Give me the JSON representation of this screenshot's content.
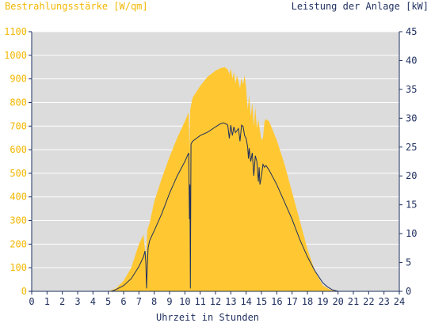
{
  "colors": {
    "irradiance": "#FFC832",
    "power": "#1F2F5F",
    "plot_bg": "#DCDCDC",
    "left_axis_text": "#F2B700",
    "right_axis_text": "#1F2F5F",
    "axis_line": "#1F2F5F",
    "grid": "#FFFFFF"
  },
  "chart_data": {
    "type": "area",
    "title_left": "Bestrahlungsstärke [W/qm]",
    "title_right": "Leistung der Anlage [kW]",
    "xlabel": "Uhrzeit in Stunden",
    "xlim": [
      0,
      24
    ],
    "ylim_left": [
      0,
      1100
    ],
    "ylim_right": [
      0,
      45
    ],
    "x_ticks": [
      "0",
      "1",
      "2",
      "3",
      "4",
      "5",
      "6",
      "7",
      "8",
      "9",
      "10",
      "11",
      "12",
      "13",
      "14",
      "15",
      "16",
      "17",
      "18",
      "19",
      "20",
      "21",
      "22",
      "23",
      "24"
    ],
    "y_left_ticks": [
      "0",
      "100",
      "200",
      "300",
      "400",
      "500",
      "600",
      "700",
      "800",
      "900",
      "1000",
      "1100"
    ],
    "y_right_ticks": [
      "0",
      "5",
      "10",
      "15",
      "20",
      "25",
      "30",
      "35",
      "40",
      "45"
    ],
    "grid": "horizontal",
    "series": [
      {
        "name": "Bestrahlungsstärke",
        "axis": "left",
        "style": "area",
        "x": [
          0,
          5.0,
          5.5,
          6.0,
          6.5,
          7.0,
          7.3,
          7.45,
          7.55,
          7.7,
          8.0,
          8.5,
          9.0,
          9.5,
          10.0,
          10.25,
          10.3,
          10.35,
          10.5,
          11.0,
          11.5,
          12.0,
          12.3,
          12.6,
          12.8,
          12.9,
          13.0,
          13.1,
          13.2,
          13.3,
          13.4,
          13.5,
          13.6,
          13.7,
          13.8,
          13.9,
          14.0,
          14.1,
          14.2,
          14.3,
          14.4,
          14.5,
          14.6,
          14.7,
          14.8,
          14.9,
          15.0,
          15.1,
          15.2,
          15.3,
          15.5,
          16.0,
          16.5,
          17.0,
          17.5,
          18.0,
          18.5,
          19.0,
          19.5,
          20.0,
          20.5,
          24
        ],
        "y": [
          0,
          0,
          12,
          45,
          100,
          200,
          240,
          140,
          260,
          290,
          380,
          480,
          570,
          650,
          720,
          760,
          600,
          770,
          820,
          870,
          910,
          935,
          945,
          950,
          940,
          920,
          945,
          900,
          930,
          880,
          915,
          890,
          860,
          905,
          875,
          915,
          860,
          770,
          830,
          740,
          800,
          700,
          780,
          690,
          730,
          680,
          640,
          650,
          720,
          730,
          720,
          640,
          540,
          420,
          300,
          180,
          85,
          25,
          6,
          0,
          0,
          0
        ]
      },
      {
        "name": "Leistung der Anlage",
        "axis": "right",
        "style": "line",
        "x": [
          0,
          5.2,
          5.5,
          6.0,
          6.5,
          7.0,
          7.3,
          7.4,
          7.45,
          7.5,
          7.55,
          7.6,
          7.7,
          8.0,
          8.5,
          9.0,
          9.5,
          10.0,
          10.25,
          10.3,
          10.33,
          10.36,
          10.4,
          10.5,
          11.0,
          11.5,
          12.0,
          12.3,
          12.5,
          12.7,
          12.8,
          12.9,
          13.0,
          13.1,
          13.2,
          13.3,
          13.5,
          13.6,
          13.7,
          13.8,
          13.9,
          14.0,
          14.1,
          14.15,
          14.2,
          14.3,
          14.4,
          14.5,
          14.6,
          14.7,
          14.8,
          14.85,
          14.9,
          15.0,
          15.1,
          15.2,
          15.3,
          15.5,
          16.0,
          16.5,
          17.0,
          17.5,
          18.0,
          18.5,
          19.0,
          19.3,
          19.6,
          20.0,
          24
        ],
        "y": [
          0,
          0,
          0.3,
          1.0,
          2.2,
          4.3,
          6.0,
          7.0,
          5.0,
          0.5,
          4.5,
          7.5,
          8.8,
          10.5,
          13.5,
          17.0,
          20.0,
          22.5,
          24.0,
          12.5,
          18.5,
          0.5,
          25.5,
          26.0,
          27.0,
          27.6,
          28.5,
          29.0,
          29.2,
          29.0,
          28.8,
          26.5,
          28.8,
          27.0,
          28.5,
          27.5,
          28.2,
          26.0,
          28.8,
          28.6,
          27.0,
          26.5,
          25.0,
          23.0,
          24.8,
          22.5,
          24.0,
          20.0,
          23.5,
          22.5,
          19.0,
          21.5,
          18.5,
          20.0,
          22.0,
          21.5,
          21.8,
          21.0,
          18.5,
          15.5,
          12.5,
          9.0,
          6.0,
          3.5,
          1.5,
          0.8,
          0.3,
          0,
          0
        ]
      }
    ]
  }
}
